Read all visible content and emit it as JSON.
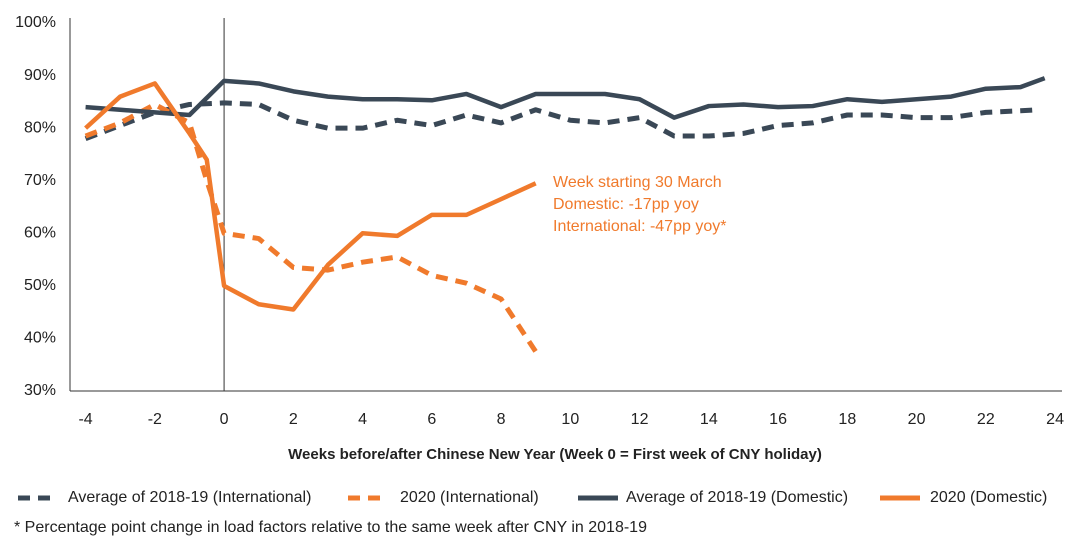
{
  "chart_data": {
    "type": "line",
    "xlabel": "Weeks before/after Chinese New Year (Week 0 = First week of CNY holiday)",
    "xlim": [
      -4.45,
      24.2
    ],
    "xticks": [
      -4,
      -2,
      0,
      2,
      4,
      6,
      8,
      10,
      12,
      14,
      16,
      18,
      20,
      22,
      24
    ],
    "ylim": [
      30,
      100
    ],
    "yticks": [
      {
        "value": 30,
        "label": "30%"
      },
      {
        "value": 40,
        "label": "40%"
      },
      {
        "value": 50,
        "label": "50%"
      },
      {
        "value": 60,
        "label": "60%"
      },
      {
        "value": 70,
        "label": "70%"
      },
      {
        "value": 80,
        "label": "80%"
      },
      {
        "value": 90,
        "label": "90%"
      },
      {
        "value": 100,
        "label": "100%"
      }
    ],
    "vline": 0,
    "annotation": [
      "Week starting 30 March",
      "Domestic: -17pp yoy",
      "International: -47pp yoy*"
    ],
    "annotation_color": "#f07a2c",
    "footnote": "* Percentage point change in load factors relative to the same week after CNY in 2018-19",
    "series": [
      {
        "name": "Average of 2018-19 (International)",
        "color": "#3a4856",
        "dashed": true,
        "x": [
          -4,
          -3,
          -2,
          -1,
          0,
          1,
          2,
          3,
          4,
          5,
          6,
          7,
          8,
          9,
          10,
          11,
          12,
          13,
          14,
          15,
          16,
          17,
          18,
          19,
          20,
          21,
          22,
          23,
          23.5
        ],
        "values": [
          78,
          80.5,
          83,
          84.5,
          84.8,
          84.5,
          81.5,
          80,
          80,
          81.5,
          80.5,
          82.5,
          81,
          83.5,
          81.5,
          81,
          82,
          78.5,
          78.5,
          79,
          80.5,
          81,
          82.5,
          82.5,
          82,
          82,
          83,
          83.3,
          83.5
        ]
      },
      {
        "name": "2020 (International)",
        "color": "#f07a2c",
        "dashed": true,
        "x": [
          -4,
          -3,
          -2,
          -1,
          -0.5,
          0,
          1,
          2,
          3,
          4,
          5,
          6,
          7,
          8,
          9
        ],
        "values": [
          78.5,
          81,
          84.5,
          81,
          70,
          60,
          59,
          53.5,
          53,
          54.5,
          55.5,
          52,
          50.5,
          47.5,
          37.5
        ]
      },
      {
        "name": "Average of 2018-19 (Domestic)",
        "color": "#3a4856",
        "dashed": false,
        "x": [
          -4,
          -3,
          -2,
          -1,
          0,
          1,
          2,
          3,
          4,
          5,
          6,
          7,
          8,
          9,
          10,
          11,
          12,
          13,
          14,
          15,
          16,
          17,
          18,
          19,
          20,
          21,
          22,
          23,
          23.7
        ],
        "values": [
          84,
          83.5,
          83,
          82.5,
          89,
          88.5,
          87,
          86,
          85.5,
          85.5,
          85.3,
          86.5,
          84,
          86.5,
          86.5,
          86.5,
          85.5,
          82,
          84.2,
          84.5,
          84,
          84.2,
          85.5,
          85,
          85.5,
          86,
          87.5,
          87.8,
          89.5
        ]
      },
      {
        "name": "2020 (Domestic)",
        "color": "#f07a2c",
        "dashed": false,
        "x": [
          -4,
          -3,
          -2,
          -1,
          -0.5,
          0,
          1,
          2,
          3,
          4,
          5,
          6,
          7,
          8,
          9
        ],
        "values": [
          80,
          86,
          88.5,
          79,
          74,
          50,
          46.5,
          45.5,
          54,
          60,
          59.5,
          63.5,
          63.5,
          66.5,
          69.5
        ]
      }
    ]
  }
}
